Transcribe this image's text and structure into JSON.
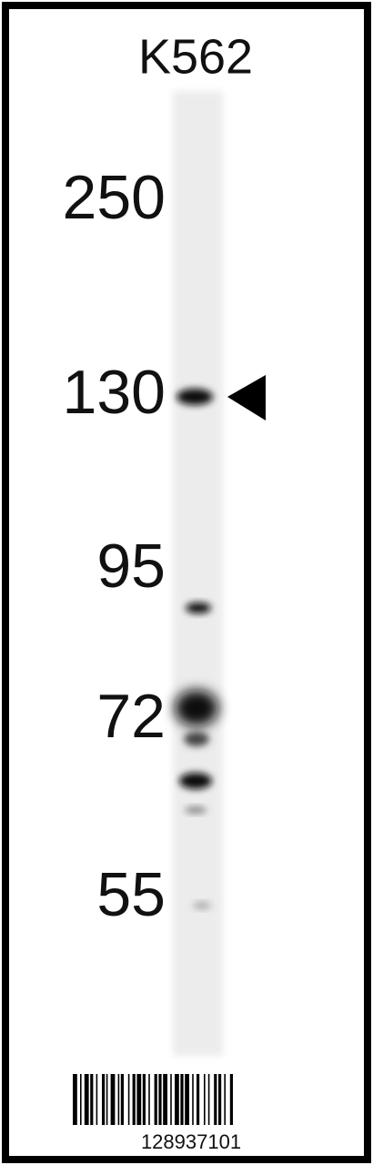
{
  "header": {
    "title": "K562"
  },
  "markers": [
    "250",
    "130",
    "95",
    "72",
    "55"
  ],
  "footer": {
    "barcode_number": "128937101"
  }
}
